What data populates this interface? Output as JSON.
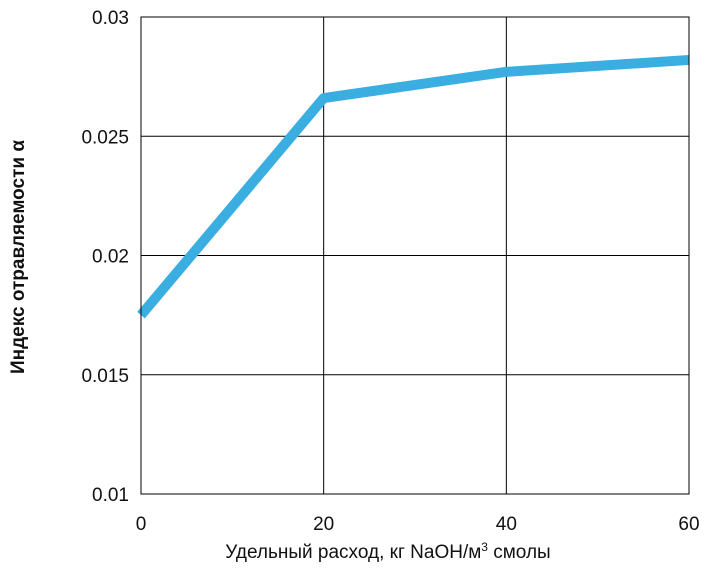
{
  "chart_data": {
    "type": "line",
    "title": "",
    "xlabel_main": "Удельный расход, кг NaOH/м",
    "xlabel_sup": "3",
    "xlabel_tail": " смолы",
    "ylabel": "Индекс отравляемости α",
    "x_ticks": [
      "0",
      "20",
      "40",
      "60"
    ],
    "y_ticks": [
      "0.01",
      "0.015",
      "0.02",
      "0.025",
      "0.03"
    ],
    "xlim": [
      0,
      60
    ],
    "ylim": [
      0.01,
      0.03
    ],
    "grid": true,
    "series": [
      {
        "x": [
          0,
          20,
          40,
          60
        ],
        "values": [
          0.0175,
          0.0266,
          0.0277,
          0.0282
        ],
        "color": "#3aaee0"
      }
    ]
  }
}
